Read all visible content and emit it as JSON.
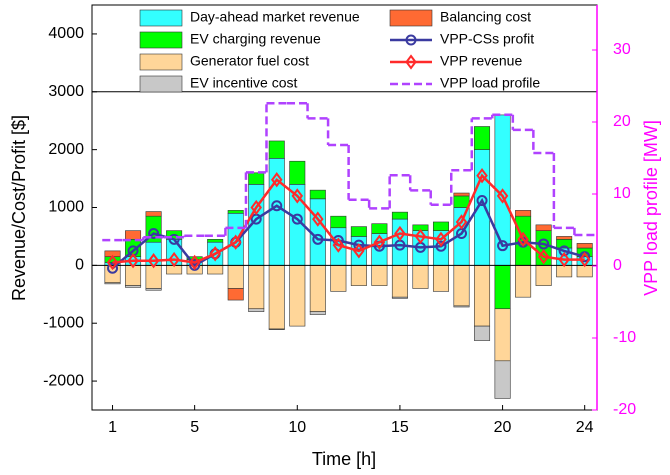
{
  "chart_data": {
    "type": "bar",
    "x_label": "Time [h]",
    "y_label": "Revenue/Cost/Profit [$]",
    "y2_label": "VPP load profile [MW]",
    "x": [
      1,
      2,
      3,
      4,
      5,
      6,
      7,
      8,
      9,
      10,
      11,
      12,
      13,
      14,
      15,
      16,
      17,
      18,
      19,
      20,
      21,
      22,
      23,
      24
    ],
    "xlim": [
      0,
      24.6
    ],
    "xticks": [
      1,
      5,
      10,
      15,
      20,
      24
    ],
    "ylim": [
      -2500,
      4500
    ],
    "yticks": [
      -2000,
      -1000,
      0,
      1000,
      2000,
      3000,
      4000
    ],
    "y2lim": [
      -20,
      36.25
    ],
    "y2ticks": [
      -20,
      -10,
      0,
      10,
      20,
      30
    ],
    "y2color": "#ff00ff",
    "series": [
      {
        "name": "Day-ahead market revenue",
        "type": "bar",
        "color": "#33ffff",
        "values": [
          50,
          150,
          400,
          450,
          100,
          400,
          900,
          1400,
          1850,
          1400,
          1150,
          650,
          500,
          550,
          800,
          600,
          600,
          1000,
          2000,
          2600,
          0,
          0,
          300,
          150
        ]
      },
      {
        "name": "EV charging revenue",
        "type": "bar",
        "color": "#00ff00",
        "values": [
          100,
          300,
          450,
          150,
          50,
          50,
          50,
          200,
          300,
          400,
          150,
          200,
          170,
          170,
          120,
          100,
          150,
          200,
          400,
          -750,
          850,
          600,
          150,
          150
        ]
      },
      {
        "name": "Generator fuel cost",
        "type": "bar",
        "color": "#ffd699",
        "values": [
          -300,
          -350,
          -400,
          -150,
          -150,
          -150,
          -400,
          -750,
          -1100,
          -1050,
          -800,
          -450,
          -350,
          -350,
          -550,
          -400,
          -450,
          -700,
          -1050,
          -900,
          -550,
          -350,
          -200,
          -200
        ]
      },
      {
        "name": "EV incentive cost",
        "type": "bar",
        "color": "#c8c8c8",
        "values": [
          -20,
          -30,
          -30,
          0,
          0,
          0,
          0,
          -50,
          -10,
          0,
          -50,
          0,
          0,
          0,
          -20,
          0,
          0,
          -20,
          -250,
          -650,
          0,
          0,
          0,
          0
        ]
      },
      {
        "name": "Balancing cost",
        "type": "bar",
        "color": "#ff6a33",
        "values": [
          100,
          150,
          80,
          0,
          0,
          0,
          -200,
          0,
          0,
          0,
          0,
          0,
          0,
          0,
          0,
          0,
          0,
          50,
          0,
          0,
          100,
          100,
          50,
          80
        ]
      },
      {
        "name": "VPP-CSs profit",
        "type": "line",
        "marker": "circle",
        "color": "#3a3aa0",
        "values": [
          -50,
          250,
          550,
          450,
          0,
          200,
          400,
          800,
          1030,
          800,
          450,
          430,
          350,
          330,
          350,
          310,
          330,
          550,
          1120,
          340,
          400,
          370,
          250,
          150
        ]
      },
      {
        "name": "VPP revenue",
        "type": "line",
        "marker": "diamond",
        "color": "#ff2a2a",
        "values": [
          50,
          80,
          80,
          100,
          50,
          200,
          400,
          1000,
          1480,
          1200,
          800,
          350,
          250,
          400,
          550,
          500,
          450,
          750,
          1550,
          1200,
          450,
          150,
          100,
          100
        ]
      },
      {
        "name": "VPP load profile",
        "type": "line",
        "step": true,
        "dashed": true,
        "axis": "y2",
        "color": "#b042ff",
        "values": [
          3.6,
          3.6,
          4.0,
          4.0,
          4.2,
          4.2,
          5.3,
          13,
          22.6,
          22.6,
          20.5,
          16.8,
          9.2,
          8,
          12.6,
          10.5,
          8.5,
          13.3,
          20.5,
          21,
          18.9,
          15.7,
          5.3,
          4.3
        ]
      }
    ]
  }
}
